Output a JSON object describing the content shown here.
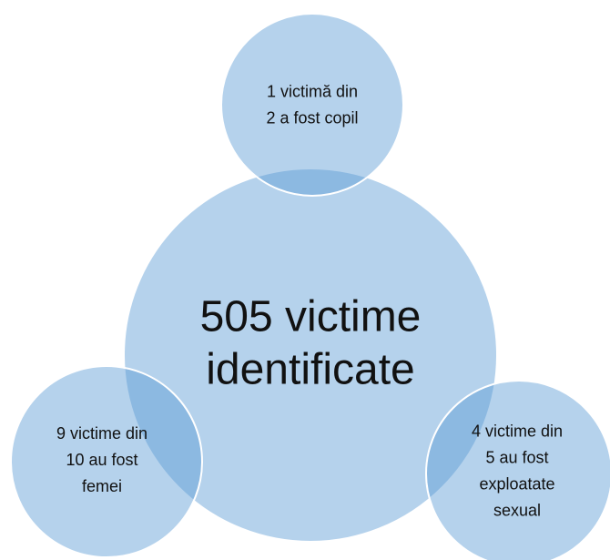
{
  "nodes": [
    {
      "lines": [
        "505 victime",
        "identificate"
      ]
    },
    {
      "lines": [
        "1 victimă din",
        "2 a fost copil"
      ]
    },
    {
      "lines": [
        "9 victime din",
        "10 au fost",
        "femei"
      ]
    },
    {
      "lines": [
        "4 victime din",
        "5 au fost",
        "exploatate",
        "sexual"
      ]
    }
  ]
}
